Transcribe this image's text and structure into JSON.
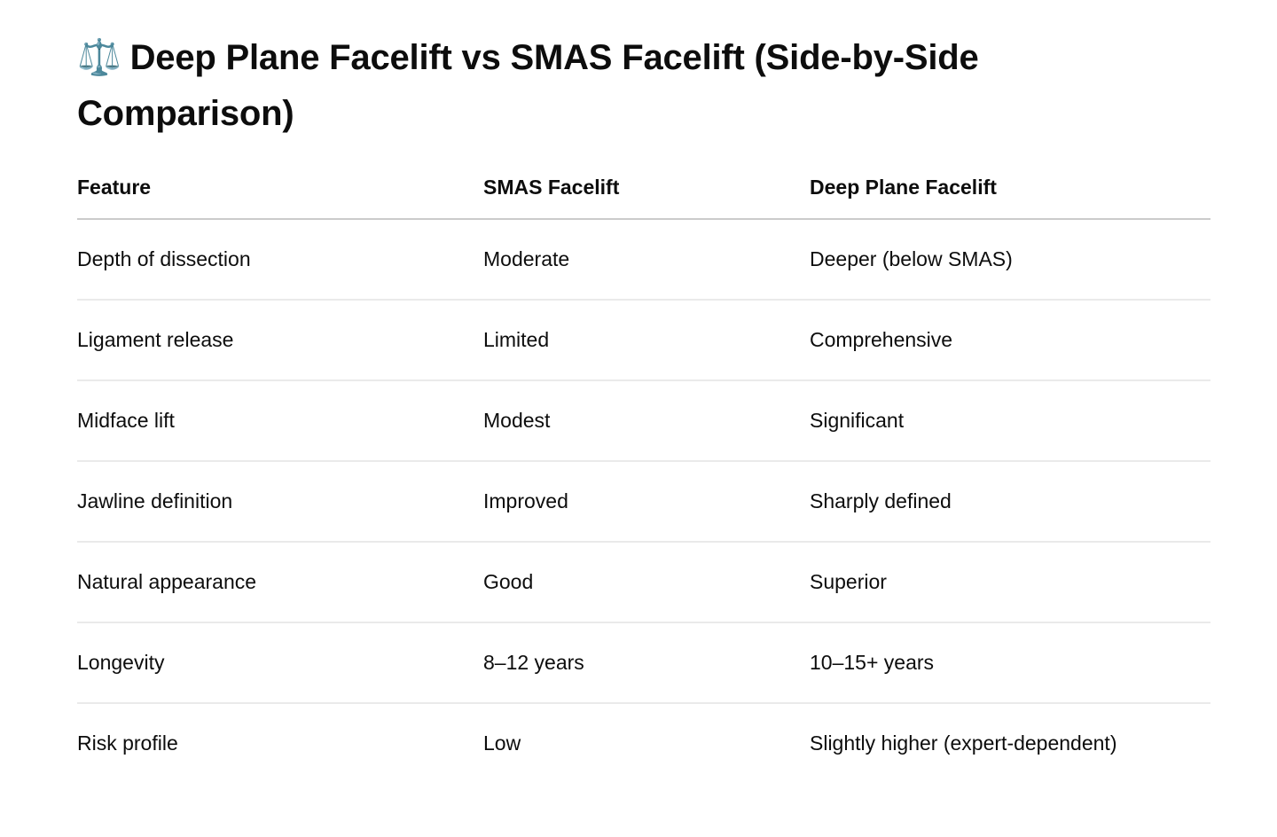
{
  "page": {
    "title": {
      "icon": "⚖️",
      "text": "Deep Plane Facelift vs SMAS Facelift (Side-by-Side Comparison)"
    }
  },
  "table": {
    "headers": [
      "Feature",
      "SMAS Facelift",
      "Deep Plane Facelift"
    ],
    "rows": [
      {
        "feature": "Depth of dissection",
        "smas": "Moderate",
        "deep_plane": "Deeper (below SMAS)"
      },
      {
        "feature": "Ligament release",
        "smas": "Limited",
        "deep_plane": "Comprehensive"
      },
      {
        "feature": "Midface lift",
        "smas": "Modest",
        "deep_plane": "Significant"
      },
      {
        "feature": "Jawline definition",
        "smas": "Improved",
        "deep_plane": "Sharply defined"
      },
      {
        "feature": "Natural appearance",
        "smas": "Good",
        "deep_plane": "Superior"
      },
      {
        "feature": "Longevity",
        "smas": "8–12 years",
        "deep_plane": "10–15+ years"
      },
      {
        "feature": "Risk profile",
        "smas": "Low",
        "deep_plane": "Slightly higher (expert-dependent)"
      }
    ]
  },
  "colors": {
    "background": "#ffffff",
    "text": "#0d0d0d",
    "header_divider": "#cbcbcb",
    "row_divider": "#eaeaea"
  }
}
